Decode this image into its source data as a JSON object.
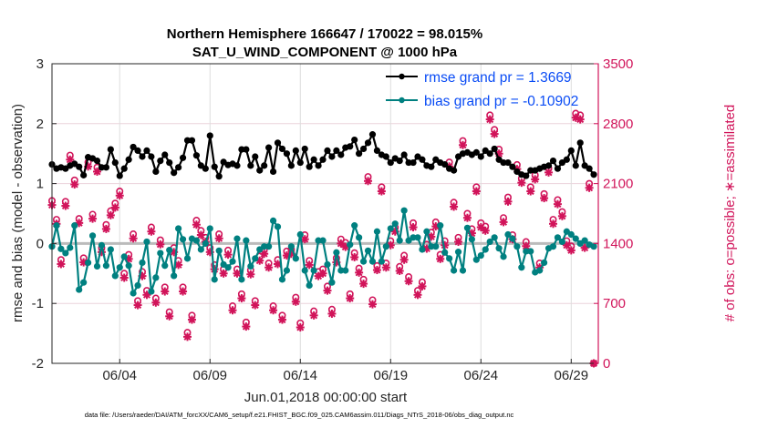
{
  "chart_data": {
    "type": "line",
    "title": [
      "Northern Hemisphere 166647 / 170022 = 98.015%",
      "SAT_U_WIND_COMPONENT @ 1000 hPa"
    ],
    "xlabel": "Jun.01,2018 00:00:00 start",
    "ylabel_left": "rmse and bias (model - observation)",
    "ylabel_right": "# of obs: o=possible; ∗=assimilated",
    "footnote": "data file: /Users/raeder/DAI/ATM_forcXX/CAM6_setup/f.e21.FHIST_BGC.f09_025.CAM6assim.011/Diags_NTrS_2018-06/obs_diag_output.nc",
    "xlim": [
      "05/31 06",
      "06/30 12"
    ],
    "xticks": [
      "06/04",
      "06/09",
      "06/14",
      "06/19",
      "06/24",
      "06/29"
    ],
    "ylim_left": [
      -2,
      3
    ],
    "yticks_left": [
      "3",
      "2",
      "1",
      "0",
      "-1",
      "-2"
    ],
    "ylim_right": [
      0,
      3500
    ],
    "yticks_right": [
      "3500",
      "2800",
      "2100",
      "1400",
      "700",
      "0"
    ],
    "grid": true,
    "legend_placement": "top-right",
    "colors": {
      "rmse": "#000000",
      "bias": "#008080",
      "obs": "#d1145a",
      "legend_text": "#0a4cf5",
      "zero_line": "#bbbbbb"
    },
    "x": [
      "05/31 06",
      "05/31 12",
      "05/31 18",
      "06/01 00",
      "06/01 06",
      "06/01 12",
      "06/01 18",
      "06/02 00",
      "06/02 06",
      "06/02 12",
      "06/02 18",
      "06/03 00",
      "06/03 06",
      "06/03 12",
      "06/03 18",
      "06/04 00",
      "06/04 06",
      "06/04 12",
      "06/04 18",
      "06/05 00",
      "06/05 06",
      "06/05 12",
      "06/05 18",
      "06/06 00",
      "06/06 06",
      "06/06 12",
      "06/06 18",
      "06/07 00",
      "06/07 06",
      "06/07 12",
      "06/07 18",
      "06/08 00",
      "06/08 06",
      "06/08 12",
      "06/08 18",
      "06/09 00",
      "06/09 06",
      "06/09 12",
      "06/09 18",
      "06/10 00",
      "06/10 06",
      "06/10 12",
      "06/10 18",
      "06/11 00",
      "06/11 06",
      "06/11 12",
      "06/11 18",
      "06/12 00",
      "06/12 06",
      "06/12 12",
      "06/12 18",
      "06/13 00",
      "06/13 06",
      "06/13 12",
      "06/13 18",
      "06/14 00",
      "06/14 06",
      "06/14 12",
      "06/14 18",
      "06/15 00",
      "06/15 06",
      "06/15 12",
      "06/15 18",
      "06/16 00",
      "06/16 06",
      "06/16 12",
      "06/16 18",
      "06/17 00",
      "06/17 06",
      "06/17 12",
      "06/17 18",
      "06/18 00",
      "06/18 06",
      "06/18 12",
      "06/18 18",
      "06/19 00",
      "06/19 06",
      "06/19 12",
      "06/19 18",
      "06/20 00",
      "06/20 06",
      "06/20 12",
      "06/20 18",
      "06/21 00",
      "06/21 06",
      "06/21 12",
      "06/21 18",
      "06/22 00",
      "06/22 06",
      "06/22 12",
      "06/22 18",
      "06/23 00",
      "06/23 06",
      "06/23 12",
      "06/23 18",
      "06/24 00",
      "06/24 06",
      "06/24 12",
      "06/24 18",
      "06/25 00",
      "06/25 06",
      "06/25 12",
      "06/25 18",
      "06/26 00",
      "06/26 06",
      "06/26 12",
      "06/26 18",
      "06/27 00",
      "06/27 06",
      "06/27 12",
      "06/27 18",
      "06/28 00",
      "06/28 06",
      "06/28 12",
      "06/28 18",
      "06/29 00",
      "06/29 06",
      "06/29 12",
      "06/29 18",
      "06/30 00",
      "06/30 06"
    ],
    "series": [
      {
        "name": "rmse grand pr = 1.3669",
        "axis": "left",
        "marker": "filled-circle",
        "values": [
          1.32,
          1.25,
          1.27,
          1.25,
          1.3,
          1.33,
          1.28,
          1.14,
          1.44,
          1.42,
          1.38,
          1.27,
          1.27,
          1.57,
          1.35,
          1.13,
          1.25,
          1.4,
          1.61,
          1.55,
          1.45,
          1.55,
          1.45,
          1.2,
          1.38,
          1.48,
          1.35,
          1.18,
          1.27,
          1.43,
          1.72,
          1.72,
          1.47,
          1.3,
          1.25,
          1.8,
          1.28,
          1.12,
          1.36,
          1.31,
          1.33,
          1.3,
          1.57,
          1.57,
          1.3,
          1.45,
          1.22,
          1.3,
          1.6,
          1.2,
          1.68,
          1.58,
          1.5,
          1.3,
          1.55,
          1.35,
          1.58,
          1.28,
          1.4,
          1.3,
          1.4,
          1.55,
          1.45,
          1.55,
          1.48,
          1.6,
          1.62,
          1.73,
          1.5,
          1.58,
          1.68,
          1.82,
          1.55,
          1.48,
          1.45,
          1.35,
          1.42,
          1.38,
          1.48,
          1.35,
          1.35,
          1.45,
          1.4,
          1.3,
          1.28,
          1.4,
          1.35,
          1.32,
          1.25,
          1.22,
          1.45,
          1.5,
          1.52,
          1.48,
          1.52,
          1.45,
          1.55,
          1.5,
          1.58,
          1.4,
          1.35,
          1.35,
          1.28,
          1.2,
          1.15,
          1.13,
          1.22,
          1.22,
          1.25,
          1.28,
          1.3,
          1.38,
          1.25,
          1.35,
          1.4,
          1.55,
          1.3,
          1.68,
          1.3,
          1.25,
          1.15
        ]
      },
      {
        "name": "bias grand pr = -0.10902",
        "axis": "left",
        "marker": "filled-circle",
        "values": [
          -0.05,
          0.3,
          -0.09,
          -0.16,
          -0.07,
          0.3,
          -0.77,
          -0.65,
          -0.32,
          0.13,
          -0.38,
          -0.03,
          -0.37,
          -0.1,
          -0.54,
          -0.4,
          -0.22,
          -0.37,
          -0.83,
          -0.7,
          -0.32,
          0.03,
          -0.8,
          -0.57,
          -0.16,
          -0.37,
          -0.11,
          -0.54,
          0.25,
          0.07,
          -0.25,
          0.08,
          0.05,
          -0.1,
          0.0,
          0.25,
          -0.6,
          -0.12,
          -0.35,
          -0.4,
          -0.3,
          0.08,
          -0.6,
          0.05,
          -0.38,
          -0.25,
          -0.1,
          -0.05,
          -0.05,
          0.38,
          0.28,
          -0.6,
          -0.45,
          -0.05,
          -0.25,
          0.15,
          -0.45,
          -0.7,
          -0.45,
          0.05,
          0.05,
          -0.35,
          -0.65,
          -0.15,
          -0.45,
          -0.45,
          -0.02,
          0.3,
          0.1,
          -0.3,
          -0.12,
          -0.3,
          0.2,
          -0.3,
          -0.05,
          0.25,
          0.33,
          0.05,
          0.55,
          0.05,
          0.1,
          0.1,
          -0.1,
          0.2,
          -0.05,
          -0.05,
          0.3,
          -0.15,
          -0.25,
          -0.45,
          -0.14,
          -0.45,
          0.26,
          0.07,
          -0.27,
          -0.2,
          -0.1,
          0.03,
          0.1,
          -0.08,
          -0.22,
          0.15,
          0.08,
          -0.05,
          -0.4,
          -0.13,
          -0.13,
          -0.48,
          -0.45,
          -0.32,
          -0.08,
          -0.05,
          0.1,
          0.03,
          0.2,
          0.15,
          0.08,
          0.0,
          0.05,
          -0.02,
          -0.05
        ]
      },
      {
        "name": "possible",
        "axis": "right",
        "marker": "open-circle",
        "values": [
          1900,
          1680,
          1210,
          1890,
          2430,
          2140,
          1690,
          1230,
          2350,
          1740,
          2290,
          1350,
          1620,
          1780,
          1870,
          2010,
          1050,
          1270,
          1510,
          730,
          1070,
          850,
          1590,
          760,
          1440,
          890,
          600,
          1350,
          1200,
          890,
          360,
          560,
          1670,
          1550,
          1470,
          1350,
          1150,
          1510,
          1100,
          1320,
          670,
          1100,
          810,
          480,
          1090,
          730,
          1250,
          1330,
          1170,
          670,
          1210,
          560,
          1310,
          1330,
          770,
          470,
          1500,
          1200,
          610,
          1070,
          1100,
          900,
          630,
          1230,
          1450,
          1410,
          810,
          1290,
          1110,
          980,
          2180,
          740,
          1140,
          2060,
          1170,
          1430,
          1590,
          1130,
          1260,
          1010,
          1640,
          850,
          950,
          1390,
          1530,
          1650,
          1270,
          1430,
          2350,
          1880,
          1470,
          2600,
          1750,
          1570,
          2060,
          1640,
          1600,
          2900,
          2730,
          2500,
          1700,
          1940,
          1500,
          2320,
          2160,
          1420,
          2060,
          2200,
          1170,
          1980,
          2280,
          1680,
          1910,
          1770,
          1430,
          1370,
          2920,
          2900,
          1400,
          2100,
          0
        ]
      },
      {
        "name": "assimilated",
        "axis": "right",
        "marker": "asterisk",
        "values": [
          1850,
          1630,
          1160,
          1840,
          2380,
          2090,
          1640,
          1180,
          2300,
          1690,
          2240,
          1300,
          1570,
          1730,
          1820,
          1960,
          1000,
          1220,
          1460,
          680,
          1020,
          800,
          1540,
          710,
          1390,
          840,
          550,
          1300,
          1150,
          840,
          310,
          510,
          1620,
          1500,
          1420,
          1300,
          1100,
          1460,
          1050,
          1270,
          620,
          1050,
          760,
          430,
          1040,
          680,
          1200,
          1280,
          1120,
          620,
          1160,
          510,
          1260,
          1280,
          720,
          420,
          1450,
          1150,
          560,
          1020,
          1050,
          850,
          580,
          1180,
          1400,
          1360,
          760,
          1240,
          1060,
          930,
          2130,
          690,
          1090,
          2010,
          1120,
          1380,
          1540,
          1080,
          1210,
          960,
          1590,
          800,
          900,
          1340,
          1480,
          1600,
          1220,
          1380,
          2300,
          1830,
          1420,
          2550,
          1700,
          1520,
          2010,
          1590,
          1550,
          2850,
          2680,
          2450,
          1650,
          1890,
          1450,
          2270,
          2110,
          1370,
          2010,
          2150,
          1120,
          1930,
          2230,
          1630,
          1860,
          1720,
          1380,
          1320,
          2870,
          2850,
          1350,
          2050,
          0
        ]
      }
    ]
  }
}
